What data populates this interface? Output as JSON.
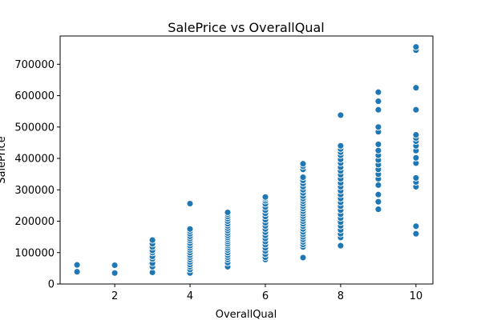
{
  "chart_data": {
    "type": "scatter",
    "title": "SalePrice vs OverallQual",
    "xlabel": "OverallQual",
    "ylabel": "SalePrice",
    "xlim": [
      0.55,
      10.45
    ],
    "ylim": [
      0,
      790000
    ],
    "xticks": [
      2,
      4,
      6,
      8,
      10
    ],
    "yticks": [
      0,
      100000,
      200000,
      300000,
      400000,
      500000,
      600000,
      700000
    ],
    "grid": false,
    "color": "#1f77b4",
    "points": [
      [
        1,
        39000
      ],
      [
        1,
        61000
      ],
      [
        2,
        35000
      ],
      [
        2,
        60000
      ],
      [
        3,
        37000
      ],
      [
        3,
        55000
      ],
      [
        3,
        66000
      ],
      [
        3,
        80000
      ],
      [
        3,
        88000
      ],
      [
        3,
        100000
      ],
      [
        3,
        107000
      ],
      [
        3,
        118000
      ],
      [
        3,
        128000
      ],
      [
        3,
        140000
      ],
      [
        4,
        35000
      ],
      [
        4,
        46000
      ],
      [
        4,
        55000
      ],
      [
        4,
        62000
      ],
      [
        4,
        70000
      ],
      [
        4,
        78000
      ],
      [
        4,
        85000
      ],
      [
        4,
        92000
      ],
      [
        4,
        100000
      ],
      [
        4,
        108000
      ],
      [
        4,
        115000
      ],
      [
        4,
        122000
      ],
      [
        4,
        130000
      ],
      [
        4,
        138000
      ],
      [
        4,
        145000
      ],
      [
        4,
        152000
      ],
      [
        4,
        160000
      ],
      [
        4,
        168000
      ],
      [
        4,
        175000
      ],
      [
        4,
        256000
      ],
      [
        5,
        55000
      ],
      [
        5,
        68000
      ],
      [
        5,
        78000
      ],
      [
        5,
        85000
      ],
      [
        5,
        92000
      ],
      [
        5,
        100000
      ],
      [
        5,
        108000
      ],
      [
        5,
        115000
      ],
      [
        5,
        122000
      ],
      [
        5,
        128000
      ],
      [
        5,
        135000
      ],
      [
        5,
        142000
      ],
      [
        5,
        148000
      ],
      [
        5,
        155000
      ],
      [
        5,
        162000
      ],
      [
        5,
        170000
      ],
      [
        5,
        178000
      ],
      [
        5,
        185000
      ],
      [
        5,
        192000
      ],
      [
        5,
        200000
      ],
      [
        5,
        208000
      ],
      [
        5,
        215000
      ],
      [
        5,
        222000
      ],
      [
        5,
        228000
      ],
      [
        6,
        78000
      ],
      [
        6,
        85000
      ],
      [
        6,
        95000
      ],
      [
        6,
        105000
      ],
      [
        6,
        115000
      ],
      [
        6,
        125000
      ],
      [
        6,
        135000
      ],
      [
        6,
        145000
      ],
      [
        6,
        155000
      ],
      [
        6,
        165000
      ],
      [
        6,
        175000
      ],
      [
        6,
        185000
      ],
      [
        6,
        195000
      ],
      [
        6,
        205000
      ],
      [
        6,
        215000
      ],
      [
        6,
        225000
      ],
      [
        6,
        235000
      ],
      [
        6,
        245000
      ],
      [
        6,
        255000
      ],
      [
        6,
        265000
      ],
      [
        6,
        272000
      ],
      [
        6,
        277000
      ],
      [
        7,
        84000
      ],
      [
        7,
        118000
      ],
      [
        7,
        126000
      ],
      [
        7,
        134000
      ],
      [
        7,
        142000
      ],
      [
        7,
        150000
      ],
      [
        7,
        158000
      ],
      [
        7,
        166000
      ],
      [
        7,
        175000
      ],
      [
        7,
        184000
      ],
      [
        7,
        192000
      ],
      [
        7,
        200000
      ],
      [
        7,
        208000
      ],
      [
        7,
        216000
      ],
      [
        7,
        224000
      ],
      [
        7,
        232000
      ],
      [
        7,
        240000
      ],
      [
        7,
        248000
      ],
      [
        7,
        256000
      ],
      [
        7,
        264000
      ],
      [
        7,
        272000
      ],
      [
        7,
        280000
      ],
      [
        7,
        290000
      ],
      [
        7,
        300000
      ],
      [
        7,
        310000
      ],
      [
        7,
        320000
      ],
      [
        7,
        330000
      ],
      [
        7,
        340000
      ],
      [
        7,
        365000
      ],
      [
        7,
        375000
      ],
      [
        7,
        383000
      ],
      [
        8,
        122000
      ],
      [
        8,
        148000
      ],
      [
        8,
        160000
      ],
      [
        8,
        172000
      ],
      [
        8,
        185000
      ],
      [
        8,
        197000
      ],
      [
        8,
        210000
      ],
      [
        8,
        222000
      ],
      [
        8,
        235000
      ],
      [
        8,
        248000
      ],
      [
        8,
        260000
      ],
      [
        8,
        272000
      ],
      [
        8,
        285000
      ],
      [
        8,
        297000
      ],
      [
        8,
        310000
      ],
      [
        8,
        322000
      ],
      [
        8,
        335000
      ],
      [
        8,
        348000
      ],
      [
        8,
        360000
      ],
      [
        8,
        372000
      ],
      [
        8,
        385000
      ],
      [
        8,
        397000
      ],
      [
        8,
        410000
      ],
      [
        8,
        420000
      ],
      [
        8,
        430000
      ],
      [
        8,
        440000
      ],
      [
        8,
        538000
      ],
      [
        9,
        238000
      ],
      [
        9,
        262000
      ],
      [
        9,
        285000
      ],
      [
        9,
        315000
      ],
      [
        9,
        335000
      ],
      [
        9,
        350000
      ],
      [
        9,
        365000
      ],
      [
        9,
        380000
      ],
      [
        9,
        395000
      ],
      [
        9,
        410000
      ],
      [
        9,
        425000
      ],
      [
        9,
        445000
      ],
      [
        9,
        485000
      ],
      [
        9,
        500000
      ],
      [
        9,
        555000
      ],
      [
        9,
        582000
      ],
      [
        9,
        611000
      ],
      [
        10,
        160000
      ],
      [
        10,
        184000
      ],
      [
        10,
        310000
      ],
      [
        10,
        325000
      ],
      [
        10,
        338000
      ],
      [
        10,
        385000
      ],
      [
        10,
        402000
      ],
      [
        10,
        425000
      ],
      [
        10,
        440000
      ],
      [
        10,
        455000
      ],
      [
        10,
        465000
      ],
      [
        10,
        475000
      ],
      [
        10,
        555000
      ],
      [
        10,
        625000
      ],
      [
        10,
        745000
      ],
      [
        10,
        755000
      ]
    ]
  }
}
